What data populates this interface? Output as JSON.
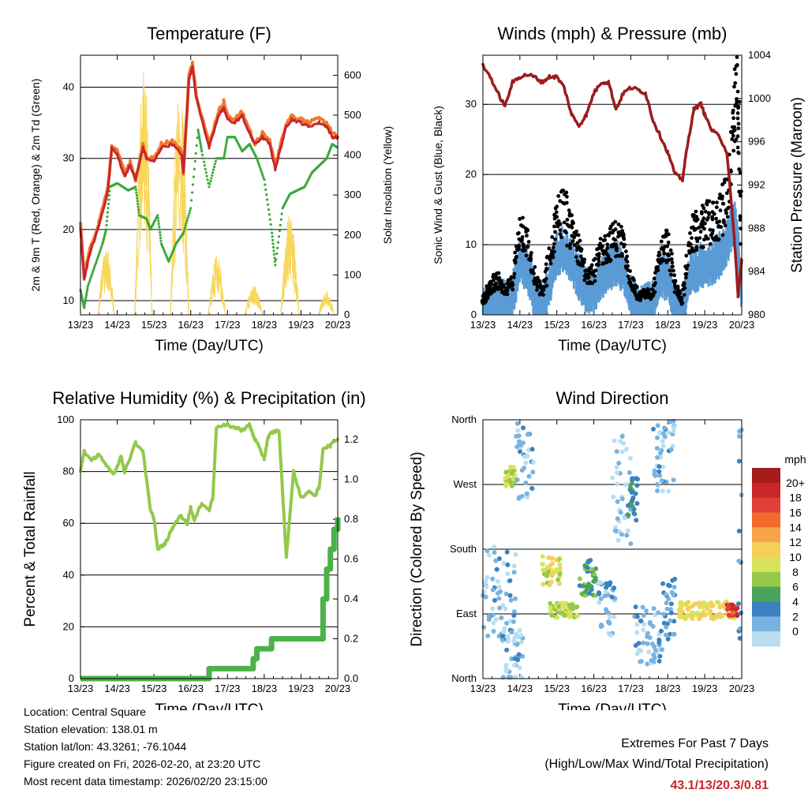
{
  "chart_data": [
    {
      "id": "temp",
      "type": "line",
      "title": "Temperature (F)",
      "xlabel": "Time (Day/UTC)",
      "ylabel_left": "2m & 9m T (Red, Orange) & 2m Td (Green)",
      "ylabel_right": "Solar Insolation (Yellow)",
      "xlim": [
        0,
        7
      ],
      "ylim_left": [
        8,
        44.5
      ],
      "ylim_right": [
        0,
        650
      ],
      "x_ticks": [
        "13/23",
        "14/23",
        "15/23",
        "16/23",
        "17/23",
        "18/23",
        "19/23",
        "20/23"
      ],
      "y_ticks_left": [
        10,
        20,
        30,
        40
      ],
      "y_ticks_right": [
        0,
        100,
        200,
        300,
        400,
        500,
        600
      ],
      "gridlines_left": [
        10,
        20,
        30,
        40
      ],
      "series": [
        {
          "name": "9m T",
          "color": "#f07a2c",
          "axis": "left",
          "x": [
            0.0,
            0.1,
            0.25,
            0.5,
            0.75,
            0.85,
            1.0,
            1.2,
            1.35,
            1.5,
            1.7,
            1.8,
            2.0,
            2.2,
            2.5,
            2.75,
            2.8,
            2.95,
            3.05,
            3.15,
            3.5,
            3.75,
            3.9,
            4.0,
            4.2,
            4.4,
            4.6,
            4.75,
            4.95,
            5.15,
            5.3,
            5.45,
            5.6,
            5.75,
            6.0,
            6.2,
            6.5,
            6.7,
            6.85,
            7.0
          ],
          "y": [
            21,
            13.5,
            17,
            21,
            26,
            31.5,
            31,
            28,
            29.5,
            27,
            32,
            30,
            30,
            32,
            32.5,
            31,
            28,
            41.5,
            43.5,
            39,
            32,
            36.5,
            38,
            36,
            35.5,
            36.5,
            34,
            32,
            33.5,
            32.5,
            29,
            32,
            35,
            36,
            35.5,
            35,
            35.5,
            35,
            33.5,
            33
          ]
        },
        {
          "name": "2m T",
          "color": "#c8262c",
          "axis": "left",
          "x": [
            0.0,
            0.1,
            0.25,
            0.5,
            0.75,
            0.85,
            1.0,
            1.2,
            1.35,
            1.5,
            1.7,
            1.8,
            2.0,
            2.2,
            2.5,
            2.75,
            2.8,
            2.95,
            3.05,
            3.15,
            3.5,
            3.75,
            3.9,
            4.0,
            4.2,
            4.4,
            4.6,
            4.75,
            4.95,
            5.15,
            5.3,
            5.45,
            5.6,
            5.75,
            6.0,
            6.2,
            6.5,
            6.7,
            6.85,
            7.0
          ],
          "y": [
            20,
            13,
            16.5,
            20.5,
            25.5,
            31.5,
            30.5,
            27.5,
            29,
            27,
            31.5,
            30,
            29.5,
            31.5,
            32,
            30.5,
            28,
            41,
            43,
            38.5,
            31.5,
            36,
            37,
            35.5,
            35,
            36,
            33.5,
            32,
            33,
            32,
            28.5,
            31.5,
            34.5,
            35.5,
            35,
            34.5,
            35,
            34.5,
            33,
            33
          ]
        },
        {
          "name": "2m Td",
          "color": "#3aa93b",
          "axis": "left",
          "x": [
            0.0,
            0.1,
            0.2,
            0.4,
            0.6,
            0.7,
            0.8,
            1.0,
            1.3,
            1.5,
            1.6,
            1.8,
            1.9,
            2.1,
            2.2,
            2.4,
            2.6,
            2.8,
            3.0,
            3.2,
            3.3,
            3.5,
            3.7,
            3.9,
            4.0,
            4.2,
            4.4,
            4.6,
            4.8,
            5.0,
            5.2,
            5.3,
            5.5,
            5.7,
            5.9,
            6.1,
            6.3,
            6.5,
            6.7,
            6.85,
            7.0
          ],
          "y": [
            11.5,
            9,
            12,
            15,
            18,
            20,
            26,
            26.5,
            25.5,
            26,
            22,
            21.5,
            20,
            22,
            18,
            15.5,
            18,
            19.5,
            23,
            34,
            31,
            26,
            30,
            30,
            33,
            33,
            31,
            32,
            30,
            27,
            20,
            15,
            23,
            25,
            25.5,
            26,
            28,
            29,
            30,
            32,
            31.5
          ]
        },
        {
          "name": "Solar Insolation",
          "color": "#f7d65a",
          "axis": "right",
          "style": "thin-spikes",
          "days": [
            {
              "start": 0.48,
              "end": 0.92,
              "peak": 180
            },
            {
              "start": 1.48,
              "end": 1.95,
              "peak": 640
            },
            {
              "start": 2.45,
              "end": 2.95,
              "peak": 600
            },
            {
              "start": 3.48,
              "end": 3.95,
              "peak": 150
            },
            {
              "start": 4.48,
              "end": 4.95,
              "peak": 80
            },
            {
              "start": 5.45,
              "end": 5.95,
              "peak": 260
            },
            {
              "start": 6.48,
              "end": 6.9,
              "peak": 60
            }
          ]
        }
      ]
    },
    {
      "id": "winds",
      "type": "line+scatter",
      "title": "Winds (mph) & Pressure (mb)",
      "xlabel": "Time (Day/UTC)",
      "ylabel_left": "Sonic Wind & Gust (Blue, Black)",
      "ylabel_right": "Station Pressure (Maroon)",
      "xlim": [
        0,
        7
      ],
      "ylim_left": [
        0,
        37
      ],
      "ylim_right": [
        980,
        1004
      ],
      "x_ticks": [
        "13/23",
        "14/23",
        "15/23",
        "16/23",
        "17/23",
        "18/23",
        "19/23",
        "20/23"
      ],
      "y_ticks_left": [
        0,
        10,
        20,
        30
      ],
      "y_ticks_right": [
        980,
        984,
        988,
        992,
        996,
        1000,
        1004
      ],
      "gridlines_left": [
        10,
        20,
        30
      ],
      "series": [
        {
          "name": "Station Pressure",
          "color": "#9b1c1c",
          "axis": "right",
          "x": [
            0.0,
            0.2,
            0.4,
            0.6,
            0.8,
            1.0,
            1.2,
            1.4,
            1.6,
            1.8,
            2.0,
            2.2,
            2.4,
            2.6,
            2.8,
            3.0,
            3.2,
            3.4,
            3.6,
            3.8,
            4.0,
            4.2,
            4.4,
            4.6,
            4.8,
            5.0,
            5.2,
            5.4,
            5.5,
            5.7,
            5.9,
            6.0,
            6.2,
            6.4,
            6.6,
            6.8,
            6.9,
            7.0
          ],
          "y": [
            1003,
            1002,
            1000.5,
            999.3,
            1001.5,
            1002,
            1002.2,
            1002,
            1001.5,
            1002,
            1002,
            1001,
            998.5,
            997.5,
            998.5,
            1000.5,
            1001.5,
            1001.5,
            999,
            1000.5,
            1001,
            1000.8,
            1000.5,
            998,
            996.5,
            995,
            993,
            992.5,
            995,
            999,
            999.5,
            998.5,
            997,
            996.5,
            995,
            987,
            981.8,
            985
          ]
        },
        {
          "name": "Sonic Wind",
          "color": "#5b9bd5",
          "axis": "left",
          "x": [
            0.0,
            0.1,
            0.2,
            0.4,
            0.6,
            0.8,
            1.0,
            1.2,
            1.4,
            1.6,
            1.8,
            2.0,
            2.2,
            2.4,
            2.6,
            2.8,
            3.0,
            3.2,
            3.4,
            3.6,
            3.8,
            4.0,
            4.2,
            4.4,
            4.6,
            4.8,
            5.0,
            5.2,
            5.4,
            5.6,
            5.8,
            6.0,
            6.2,
            6.4,
            6.6,
            6.8,
            6.9,
            7.0
          ],
          "y": [
            1,
            1.5,
            2,
            3,
            2,
            3,
            8,
            7,
            3,
            1.5,
            5,
            9,
            10,
            8,
            6,
            4,
            4,
            6,
            7,
            8,
            7,
            3,
            1.5,
            2,
            2,
            6,
            6,
            2,
            1,
            6,
            7,
            8,
            8,
            9,
            11,
            14,
            10,
            4
          ]
        },
        {
          "name": "Gust",
          "color": "#000000",
          "axis": "left",
          "style": "dots",
          "x": [
            0.0,
            0.1,
            0.2,
            0.4,
            0.6,
            0.8,
            1.0,
            1.2,
            1.4,
            1.6,
            1.8,
            2.0,
            2.2,
            2.4,
            2.6,
            2.8,
            3.0,
            3.2,
            3.4,
            3.6,
            3.8,
            4.0,
            4.2,
            4.4,
            4.6,
            4.8,
            5.0,
            5.2,
            5.4,
            5.6,
            5.8,
            6.0,
            6.2,
            6.4,
            6.6,
            6.8,
            6.9,
            7.0
          ],
          "y": [
            2,
            3,
            4,
            5,
            3,
            5,
            13,
            10,
            5,
            3,
            8,
            14,
            15,
            11,
            9,
            6,
            6,
            9,
            10,
            11,
            10,
            5,
            2.5,
            3,
            3,
            9,
            10,
            4,
            2,
            11,
            12,
            13,
            13,
            14,
            17,
            27,
            30,
            10
          ]
        }
      ]
    },
    {
      "id": "rh",
      "type": "line",
      "title": "Relative Humidity (%) & Precipitation (in)",
      "xlabel": "Time (Day/UTC)",
      "ylabel_left": "Percent & Total Rainfall",
      "xlim": [
        0,
        7
      ],
      "ylim_left": [
        0,
        100
      ],
      "ylim_right": [
        0,
        1.3
      ],
      "x_ticks": [
        "13/23",
        "14/23",
        "15/23",
        "16/23",
        "17/23",
        "18/23",
        "19/23",
        "20/23"
      ],
      "y_ticks_left": [
        0,
        20,
        40,
        60,
        80,
        100
      ],
      "y_ticks_right": [
        0.0,
        0.2,
        0.4,
        0.6,
        0.8,
        1.0,
        1.2
      ],
      "gridlines_left": [
        20,
        40,
        60,
        80
      ],
      "series": [
        {
          "name": "Relative Humidity",
          "color": "#93c94a",
          "axis": "left",
          "x": [
            0.0,
            0.1,
            0.3,
            0.5,
            0.7,
            0.9,
            1.0,
            1.1,
            1.2,
            1.5,
            1.7,
            1.9,
            2.0,
            2.1,
            2.3,
            2.5,
            2.7,
            2.9,
            3.0,
            3.1,
            3.3,
            3.5,
            3.6,
            3.7,
            4.0,
            4.2,
            4.4,
            4.6,
            4.7,
            4.8,
            5.0,
            5.1,
            5.2,
            5.4,
            5.5,
            5.6,
            5.8,
            6.0,
            6.2,
            6.4,
            6.5,
            6.6,
            6.8,
            7.0
          ],
          "y": [
            80,
            88,
            84,
            87,
            82,
            79,
            82,
            86,
            80,
            91,
            88,
            65,
            62,
            50,
            52,
            58,
            63,
            60,
            66,
            61,
            68,
            65,
            70,
            97,
            98,
            97,
            96,
            98,
            94,
            91,
            85,
            93,
            95,
            96,
            72,
            47,
            80,
            70,
            72,
            71,
            74,
            89,
            90,
            93
          ]
        },
        {
          "name": "Total Precipitation",
          "color": "#4db14a",
          "axis": "right",
          "x": [
            0.0,
            3.3,
            3.5,
            4.5,
            4.7,
            4.8,
            5.0,
            5.2,
            6.5,
            6.6,
            6.7,
            6.8,
            6.9,
            7.0
          ],
          "y": [
            0.0,
            0.0,
            0.05,
            0.05,
            0.1,
            0.15,
            0.15,
            0.2,
            0.2,
            0.4,
            0.55,
            0.65,
            0.75,
            0.81
          ]
        }
      ]
    },
    {
      "id": "winddir",
      "type": "scatter",
      "title": "Wind Direction",
      "xlabel": "Time (Day/UTC)",
      "ylabel_left": "Direction (Colored By Speed)",
      "xlim": [
        0,
        7
      ],
      "ylim_left": [
        0,
        360
      ],
      "x_ticks": [
        "13/23",
        "14/23",
        "15/23",
        "16/23",
        "17/23",
        "18/23",
        "19/23",
        "20/23"
      ],
      "y_ticks_left": [
        "North",
        "East",
        "South",
        "West",
        "North"
      ],
      "y_tick_values": [
        0,
        90,
        180,
        270,
        360
      ],
      "gridlines_left": [
        90,
        180,
        270
      ],
      "colorbar": {
        "title": "mph",
        "labels": [
          "20+",
          "18",
          "16",
          "14",
          "12",
          "10",
          "8",
          "6",
          "4",
          "2",
          "0"
        ],
        "colors": [
          "#a51c1c",
          "#c82628",
          "#e04038",
          "#f26a2c",
          "#f7a34a",
          "#f6cf5a",
          "#d9e35a",
          "#96c94a",
          "#4aa35b",
          "#3a82c0",
          "#78b3e0",
          "#b9def2"
        ]
      },
      "clusters": [
        {
          "x0": 0.0,
          "x1": 0.9,
          "dir": 120,
          "spread": 70,
          "speed": 2
        },
        {
          "x0": 0.6,
          "x1": 0.9,
          "dir": 280,
          "spread": 15,
          "speed": 9
        },
        {
          "x0": 0.9,
          "x1": 1.4,
          "dir": 300,
          "spread": 55,
          "speed": 1.5
        },
        {
          "x0": 0.5,
          "x1": 1.1,
          "dir": 30,
          "spread": 40,
          "speed": 1.5
        },
        {
          "x0": 1.6,
          "x1": 2.1,
          "dir": 150,
          "spread": 20,
          "speed": 10
        },
        {
          "x0": 1.8,
          "x1": 2.6,
          "dir": 95,
          "spread": 10,
          "speed": 9
        },
        {
          "x0": 2.6,
          "x1": 3.1,
          "dir": 140,
          "spread": 25,
          "speed": 6
        },
        {
          "x0": 3.1,
          "x1": 3.6,
          "dir": 100,
          "spread": 40,
          "speed": 2
        },
        {
          "x0": 3.5,
          "x1": 4.0,
          "dir": 260,
          "spread": 80,
          "speed": 1
        },
        {
          "x0": 3.9,
          "x1": 4.2,
          "dir": 250,
          "spread": 30,
          "speed": 5
        },
        {
          "x0": 4.1,
          "x1": 4.8,
          "dir": 60,
          "spread": 40,
          "speed": 2
        },
        {
          "x0": 4.6,
          "x1": 5.2,
          "dir": 310,
          "spread": 50,
          "speed": 1.5
        },
        {
          "x0": 4.8,
          "x1": 5.2,
          "dir": 90,
          "spread": 50,
          "speed": 3
        },
        {
          "x0": 5.3,
          "x1": 6.8,
          "dir": 95,
          "spread": 12,
          "speed": 11
        },
        {
          "x0": 6.6,
          "x1": 6.9,
          "dir": 95,
          "spread": 8,
          "speed": 18
        },
        {
          "x0": 6.9,
          "x1": 7.0,
          "dir": 200,
          "spread": 150,
          "speed": 3
        }
      ]
    }
  ],
  "footer": {
    "location": "Location: Central Square",
    "elevation": "Station elevation: 138.01 m",
    "latlon": "Station lat/lon: 43.3261; -76.1044",
    "created": "Figure created on Fri, 2026-02-20, at 23:20 UTC",
    "recent": "Most recent data timestamp: 2026/02/20 23:15:00"
  },
  "extremes": {
    "title": "Extremes For Past 7 Days",
    "subtitle": "(High/Low/Max Wind/Total Precipitation)",
    "values": "43.1/13/20.3/0.81"
  }
}
